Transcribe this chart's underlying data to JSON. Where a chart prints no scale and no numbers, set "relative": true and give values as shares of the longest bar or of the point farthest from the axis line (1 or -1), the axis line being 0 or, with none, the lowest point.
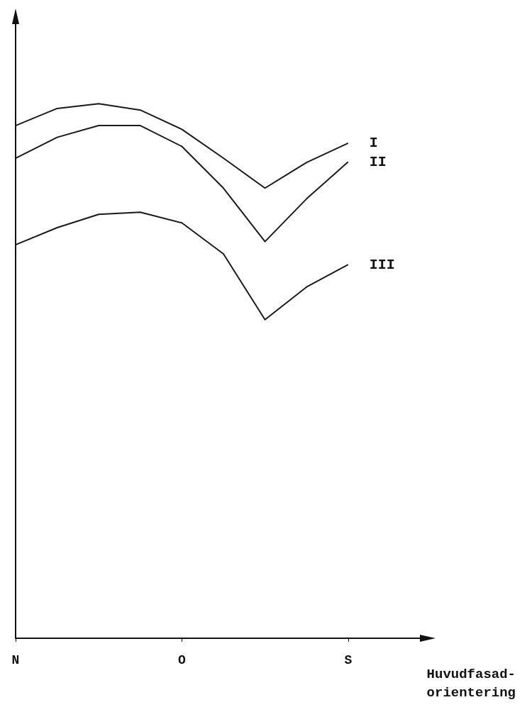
{
  "chart_data": {
    "type": "line",
    "relative": true,
    "xlabel": "Huvudfasad-\norientering",
    "categories": [
      "N",
      null,
      null,
      null,
      "O",
      null,
      null,
      null,
      "S",
      null,
      null
    ],
    "series": [
      {
        "name": "I",
        "color": "#1a1a1a",
        "values": [
          0.959,
          0.991,
          1.0,
          0.988,
          0.952,
          0.898,
          0.842,
          0.89,
          0.926,
          null,
          null
        ]
      },
      {
        "name": "II",
        "color": "#1a1a1a",
        "values": [
          0.898,
          0.937,
          0.959,
          0.959,
          0.92,
          0.842,
          0.742,
          0.822,
          0.891,
          null,
          null
        ]
      },
      {
        "name": "III",
        "color": "#1a1a1a",
        "values": [
          0.736,
          0.768,
          0.793,
          0.797,
          0.777,
          0.719,
          0.596,
          0.657,
          0.699,
          null,
          null
        ]
      }
    ],
    "legend": false,
    "grid": false,
    "marker": "none",
    "line_style": "solid"
  }
}
